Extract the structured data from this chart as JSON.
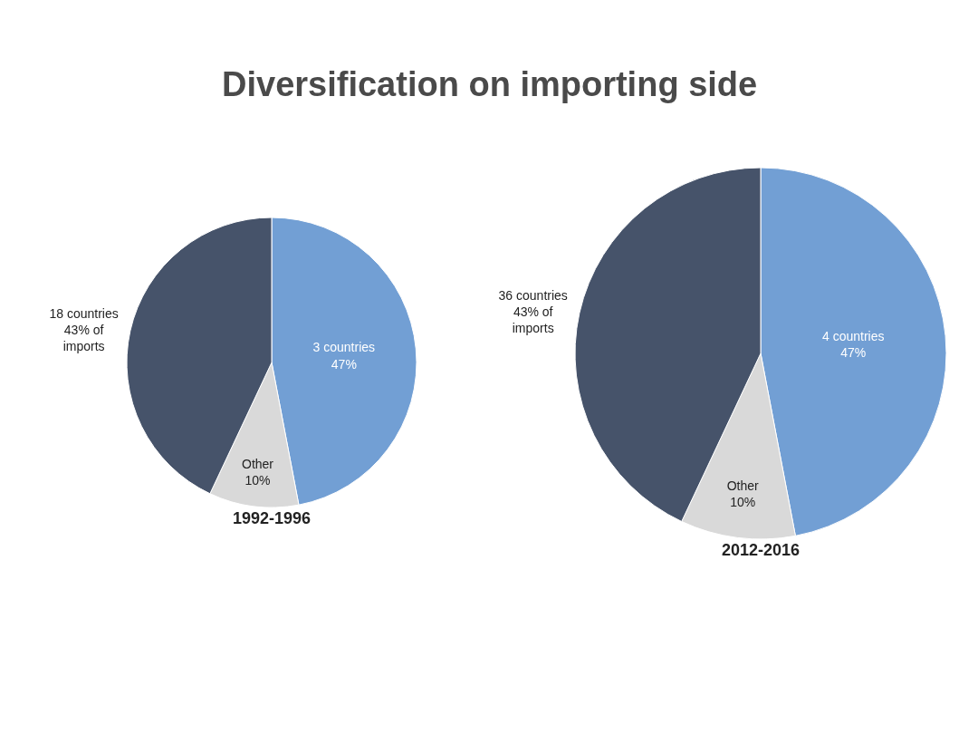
{
  "chart_data": [
    {
      "type": "pie",
      "title": "1992-1996",
      "annotations": [
        "Diversification on importing side"
      ],
      "categories": [
        "3 countries",
        "Other",
        "18 countries"
      ],
      "values": [
        47,
        10,
        43
      ],
      "value_labels": [
        "47%",
        "10%",
        "43% of\nimports"
      ],
      "colors": [
        "#729fd4",
        "#d9d9d9",
        "#46536a"
      ]
    },
    {
      "type": "pie",
      "title": "2012-2016",
      "categories": [
        "4 countries",
        "Other",
        "36 countries"
      ],
      "values": [
        47,
        10,
        43
      ],
      "value_labels": [
        "47%",
        "10%",
        "43% of\nimports"
      ],
      "colors": [
        "#729fd4",
        "#d9d9d9",
        "#46536a"
      ]
    }
  ]
}
